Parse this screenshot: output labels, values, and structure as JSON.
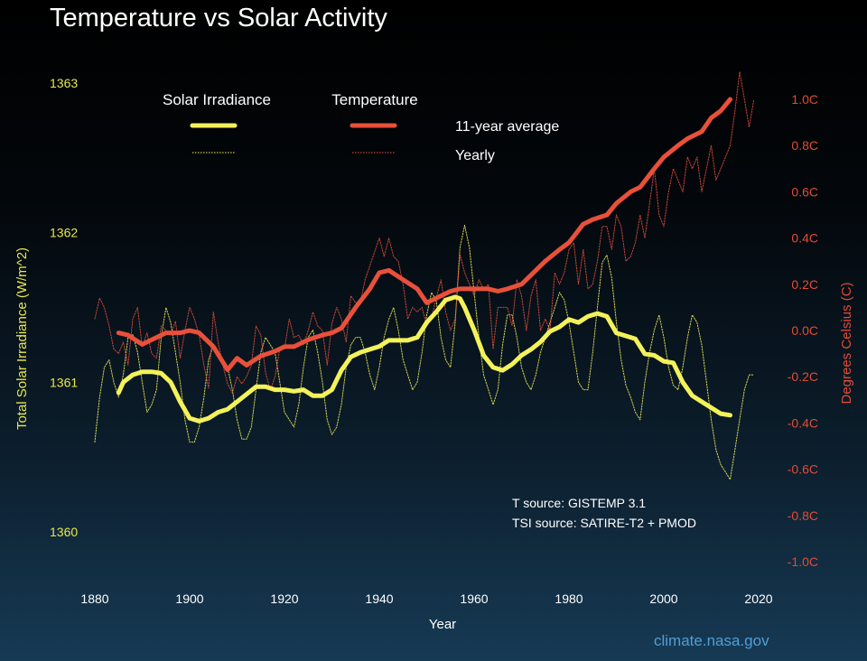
{
  "title": "Temperature vs Solar Activity",
  "credit": "climate.nasa.gov",
  "sources": [
    "T source: GISTEMP 3.1",
    "TSI source: SATIRE-T2 + PMOD"
  ],
  "legend": {
    "solar_header": "Solar Irradiance",
    "temp_header": "Temperature",
    "avg_label": "11-year average",
    "yearly_label": "Yearly"
  },
  "colors": {
    "solar": "#f4f25a",
    "temperature": "#e9503a",
    "solar_axis": "#e8e84a",
    "temp_axis": "#e24b36",
    "text": "#ffffff",
    "credit": "#4f9fd6"
  },
  "chart_data": {
    "type": "line",
    "xlabel": "Year",
    "y_left_label": "Total Solar Irradiance (W/m^2)",
    "y_right_label": "Degrees Celsius (C)",
    "xlim": [
      1880,
      2020
    ],
    "y_left_lim": [
      1360,
      1363
    ],
    "y_right_lim": [
      -1.0,
      1.0
    ],
    "x_ticks": [
      "1880",
      "1900",
      "1920",
      "1940",
      "1960",
      "1980",
      "2000",
      "2020"
    ],
    "y_left_ticks": [
      "1360",
      "1361",
      "1362",
      "1363"
    ],
    "y_right_ticks": [
      "-1.0C",
      "-0.8C",
      "-0.6C",
      "-0.4C",
      "-0.2C",
      "0.0C",
      "0.2C",
      "0.4C",
      "0.6C",
      "0.8C",
      "1.0C"
    ],
    "series": [
      {
        "axis": "right",
        "style": "thick",
        "x": [
          1885,
          1887,
          1890,
          1892,
          1895,
          1898,
          1900,
          1902,
          1905,
          1908,
          1910,
          1912,
          1915,
          1918,
          1920,
          1922,
          1925,
          1928,
          1930,
          1932,
          1935,
          1938,
          1940,
          1942,
          1945,
          1948,
          1950,
          1952,
          1955,
          1957,
          1960,
          1963,
          1965,
          1967,
          1970,
          1973,
          1975,
          1978,
          1980,
          1983,
          1985,
          1988,
          1990,
          1993,
          1995,
          1998,
          2000,
          2003,
          2005,
          2008,
          2010,
          2012,
          2014
        ],
        "y": [
          -0.01,
          -0.02,
          -0.06,
          -0.04,
          -0.01,
          -0.01,
          0.0,
          -0.01,
          -0.07,
          -0.17,
          -0.12,
          -0.15,
          -0.11,
          -0.09,
          -0.07,
          -0.07,
          -0.04,
          -0.02,
          -0.01,
          0.01,
          0.1,
          0.18,
          0.25,
          0.26,
          0.22,
          0.18,
          0.12,
          0.14,
          0.17,
          0.18,
          0.18,
          0.18,
          0.17,
          0.18,
          0.2,
          0.26,
          0.3,
          0.35,
          0.38,
          0.46,
          0.48,
          0.5,
          0.55,
          0.6,
          0.62,
          0.7,
          0.75,
          0.8,
          0.83,
          0.86,
          0.92,
          0.95,
          1.0
        ]
      },
      {
        "axis": "right",
        "style": "thin",
        "x": [
          1880,
          1881,
          1882,
          1883,
          1884,
          1885,
          1886,
          1887,
          1888,
          1889,
          1890,
          1891,
          1892,
          1893,
          1894,
          1895,
          1896,
          1897,
          1898,
          1899,
          1900,
          1901,
          1902,
          1903,
          1904,
          1905,
          1906,
          1907,
          1908,
          1909,
          1910,
          1911,
          1912,
          1913,
          1914,
          1915,
          1916,
          1917,
          1918,
          1919,
          1920,
          1921,
          1922,
          1923,
          1924,
          1925,
          1926,
          1927,
          1928,
          1929,
          1930,
          1931,
          1932,
          1933,
          1934,
          1935,
          1936,
          1937,
          1938,
          1939,
          1940,
          1941,
          1942,
          1943,
          1944,
          1945,
          1946,
          1947,
          1948,
          1949,
          1950,
          1951,
          1952,
          1953,
          1954,
          1955,
          1956,
          1957,
          1958,
          1959,
          1960,
          1961,
          1962,
          1963,
          1964,
          1965,
          1966,
          1967,
          1968,
          1969,
          1970,
          1971,
          1972,
          1973,
          1974,
          1975,
          1976,
          1977,
          1978,
          1979,
          1980,
          1981,
          1982,
          1983,
          1984,
          1985,
          1986,
          1987,
          1988,
          1989,
          1990,
          1991,
          1992,
          1993,
          1994,
          1995,
          1996,
          1997,
          1998,
          1999,
          2000,
          2001,
          2002,
          2003,
          2004,
          2005,
          2006,
          2007,
          2008,
          2009,
          2010,
          2011,
          2012,
          2013,
          2014,
          2015,
          2016,
          2017,
          2018,
          2019
        ],
        "y": [
          0.05,
          0.14,
          0.1,
          0.02,
          -0.08,
          -0.1,
          -0.05,
          -0.15,
          0.05,
          0.1,
          -0.07,
          -0.01,
          -0.1,
          -0.12,
          0.02,
          0.0,
          -0.02,
          0.04,
          -0.12,
          0.0,
          0.1,
          0.05,
          -0.02,
          -0.15,
          -0.25,
          0.08,
          -0.05,
          -0.15,
          -0.23,
          -0.27,
          -0.2,
          -0.23,
          -0.2,
          -0.15,
          0.02,
          -0.02,
          -0.18,
          -0.26,
          -0.2,
          -0.08,
          -0.08,
          0.05,
          -0.03,
          -0.02,
          -0.06,
          0.0,
          0.08,
          0.02,
          0.0,
          -0.15,
          0.03,
          0.1,
          0.05,
          -0.05,
          0.15,
          0.12,
          0.12,
          0.22,
          0.28,
          0.34,
          0.4,
          0.32,
          0.4,
          0.32,
          0.3,
          0.2,
          0.05,
          0.1,
          0.08,
          0.1,
          0.02,
          0.05,
          0.14,
          0.22,
          0.08,
          0.0,
          0.05,
          0.33,
          0.25,
          0.2,
          0.15,
          0.22,
          0.18,
          0.2,
          -0.08,
          0.1,
          0.1,
          0.1,
          0.02,
          0.22,
          0.15,
          0.0,
          0.15,
          0.22,
          0.0,
          0.05,
          0.0,
          0.25,
          0.2,
          0.25,
          0.35,
          0.38,
          0.2,
          0.35,
          0.18,
          0.2,
          0.3,
          0.45,
          0.45,
          0.35,
          0.5,
          0.45,
          0.3,
          0.32,
          0.38,
          0.5,
          0.4,
          0.55,
          0.7,
          0.5,
          0.45,
          0.6,
          0.7,
          0.65,
          0.6,
          0.75,
          0.7,
          0.75,
          0.6,
          0.7,
          0.8,
          0.65,
          0.7,
          0.75,
          0.8,
          0.95,
          1.12,
          1.0,
          0.88,
          1.0
        ]
      },
      {
        "axis": "left",
        "style": "thick",
        "x": [
          1885,
          1886,
          1888,
          1890,
          1892,
          1894,
          1896,
          1898,
          1900,
          1902,
          1904,
          1906,
          1908,
          1910,
          1912,
          1914,
          1916,
          1918,
          1920,
          1922,
          1924,
          1926,
          1928,
          1930,
          1932,
          1934,
          1936,
          1938,
          1940,
          1942,
          1944,
          1946,
          1948,
          1950,
          1952,
          1954,
          1956,
          1957,
          1958,
          1960,
          1962,
          1964,
          1966,
          1968,
          1970,
          1972,
          1974,
          1976,
          1978,
          1980,
          1982,
          1984,
          1986,
          1988,
          1990,
          1992,
          1994,
          1996,
          1998,
          2000,
          2002,
          2004,
          2006,
          2008,
          2010,
          2012,
          2014
        ],
        "y": [
          1360.93,
          1361.0,
          1361.05,
          1361.07,
          1361.07,
          1361.06,
          1361.0,
          1360.87,
          1360.76,
          1360.74,
          1360.76,
          1360.8,
          1360.82,
          1360.87,
          1360.92,
          1360.97,
          1360.97,
          1360.95,
          1360.95,
          1360.94,
          1360.95,
          1360.91,
          1360.91,
          1360.95,
          1361.08,
          1361.17,
          1361.2,
          1361.22,
          1361.24,
          1361.28,
          1361.28,
          1361.28,
          1361.3,
          1361.4,
          1361.47,
          1361.55,
          1361.57,
          1361.56,
          1361.5,
          1361.35,
          1361.18,
          1361.1,
          1361.08,
          1361.12,
          1361.18,
          1361.22,
          1361.27,
          1361.34,
          1361.37,
          1361.42,
          1361.4,
          1361.44,
          1361.46,
          1361.44,
          1361.33,
          1361.31,
          1361.29,
          1361.19,
          1361.18,
          1361.14,
          1361.13,
          1361.0,
          1360.91,
          1360.87,
          1360.83,
          1360.79,
          1360.78
        ]
      },
      {
        "axis": "left",
        "style": "thin",
        "x": [
          1880,
          1881,
          1882,
          1883,
          1884,
          1885,
          1886,
          1887,
          1888,
          1889,
          1890,
          1891,
          1892,
          1893,
          1894,
          1895,
          1896,
          1897,
          1898,
          1899,
          1900,
          1901,
          1902,
          1903,
          1904,
          1905,
          1906,
          1907,
          1908,
          1909,
          1910,
          1911,
          1912,
          1913,
          1914,
          1915,
          1916,
          1917,
          1918,
          1919,
          1920,
          1921,
          1922,
          1923,
          1924,
          1925,
          1926,
          1927,
          1928,
          1929,
          1930,
          1931,
          1932,
          1933,
          1934,
          1935,
          1936,
          1937,
          1938,
          1939,
          1940,
          1941,
          1942,
          1943,
          1944,
          1945,
          1946,
          1947,
          1948,
          1949,
          1950,
          1951,
          1952,
          1953,
          1954,
          1955,
          1956,
          1957,
          1958,
          1959,
          1960,
          1961,
          1962,
          1963,
          1964,
          1965,
          1966,
          1967,
          1968,
          1969,
          1970,
          1971,
          1972,
          1973,
          1974,
          1975,
          1976,
          1977,
          1978,
          1979,
          1980,
          1981,
          1982,
          1983,
          1984,
          1985,
          1986,
          1987,
          1988,
          1989,
          1990,
          1991,
          1992,
          1993,
          1994,
          1995,
          1996,
          1997,
          1998,
          1999,
          2000,
          2001,
          2002,
          2003,
          2004,
          2005,
          2006,
          2007,
          2008,
          2009,
          2010,
          2011,
          2012,
          2013,
          2014,
          2015,
          2016,
          2017,
          2018,
          2019
        ],
        "y": [
          1360.6,
          1360.9,
          1361.1,
          1361.15,
          1361.0,
          1360.9,
          1361.05,
          1361.3,
          1361.32,
          1361.2,
          1361.0,
          1360.8,
          1360.85,
          1360.95,
          1361.3,
          1361.5,
          1361.4,
          1361.2,
          1361.0,
          1360.75,
          1360.6,
          1360.6,
          1360.7,
          1360.9,
          1361.15,
          1361.25,
          1361.2,
          1361.15,
          1361.1,
          1360.95,
          1360.75,
          1360.62,
          1360.62,
          1360.7,
          1360.95,
          1361.2,
          1361.3,
          1361.25,
          1361.2,
          1361.0,
          1360.8,
          1360.75,
          1360.7,
          1360.85,
          1361.1,
          1361.3,
          1361.35,
          1361.2,
          1361.0,
          1360.75,
          1360.65,
          1360.7,
          1360.85,
          1361.1,
          1361.25,
          1361.3,
          1361.3,
          1361.2,
          1361.05,
          1360.95,
          1361.1,
          1361.3,
          1361.42,
          1361.5,
          1361.35,
          1361.15,
          1361.05,
          1360.95,
          1361.0,
          1361.2,
          1361.45,
          1361.6,
          1361.55,
          1361.3,
          1361.15,
          1361.1,
          1361.4,
          1361.9,
          1362.05,
          1361.9,
          1361.6,
          1361.3,
          1361.05,
          1360.95,
          1360.85,
          1360.95,
          1361.25,
          1361.45,
          1361.45,
          1361.3,
          1361.1,
          1361.0,
          1360.95,
          1361.05,
          1361.2,
          1361.3,
          1361.4,
          1361.5,
          1361.6,
          1361.55,
          1361.4,
          1361.2,
          1361.0,
          1360.95,
          1360.95,
          1361.2,
          1361.5,
          1361.8,
          1361.85,
          1361.7,
          1361.4,
          1361.15,
          1360.98,
          1360.9,
          1360.8,
          1360.75,
          1361.0,
          1361.2,
          1361.35,
          1361.45,
          1361.3,
          1361.1,
          1360.98,
          1360.95,
          1361.1,
          1361.3,
          1361.45,
          1361.4,
          1361.25,
          1361.0,
          1360.75,
          1360.55,
          1360.45,
          1360.4,
          1360.35,
          1360.55,
          1360.75,
          1360.95,
          1361.05,
          1361.05
        ]
      }
    ]
  }
}
